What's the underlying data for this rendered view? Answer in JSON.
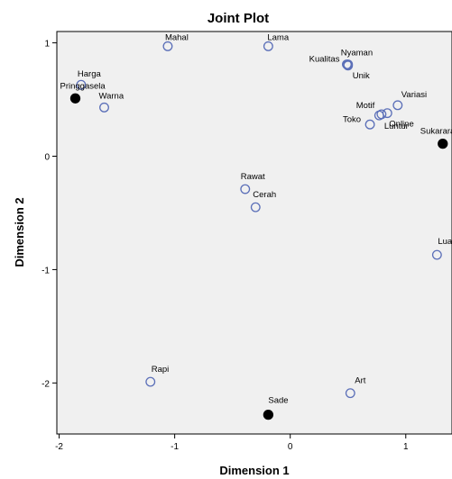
{
  "chart_data": {
    "type": "scatter",
    "title": "Joint Plot",
    "xlabel": "Dimension 1",
    "ylabel": "Dimension 2",
    "xlim": [
      -2.02,
      1.4
    ],
    "ylim": [
      -2.45,
      1.1
    ],
    "xticks": [
      -2,
      -1,
      0,
      1
    ],
    "yticks": [
      1,
      0,
      -1,
      -2
    ],
    "xtick_labels": [
      "-2",
      "-1",
      "0",
      "1"
    ],
    "ytick_labels": [
      "1",
      "0",
      "-1",
      "-2"
    ],
    "grid": false,
    "plot_background": "#f0f0f0",
    "series": [
      {
        "marker": "open-circle",
        "color": "#5b6fb8",
        "points": [
          {
            "label": "Mahal",
            "x": -1.06,
            "y": 0.97
          },
          {
            "label": "Lama",
            "x": -0.19,
            "y": 0.97
          },
          {
            "label": "Kualitas",
            "x": 0.49,
            "y": 0.81
          },
          {
            "label": "Nyaman",
            "x": 0.5,
            "y": 0.81
          },
          {
            "label": "Unik",
            "x": 0.5,
            "y": 0.8
          },
          {
            "label": "Harga",
            "x": -1.81,
            "y": 0.63
          },
          {
            "label": "Warna",
            "x": -1.61,
            "y": 0.43
          },
          {
            "label": "Variasi",
            "x": 0.93,
            "y": 0.45
          },
          {
            "label": "Motif",
            "x": 0.77,
            "y": 0.36
          },
          {
            "label": "Online",
            "x": 0.84,
            "y": 0.38
          },
          {
            "label": "Toko",
            "x": 0.69,
            "y": 0.28
          },
          {
            "label": "Luntur",
            "x": 0.79,
            "y": 0.37
          },
          {
            "label": "Rawat",
            "x": -0.39,
            "y": -0.29
          },
          {
            "label": "Cerah",
            "x": -0.3,
            "y": -0.45
          },
          {
            "label": "Luas",
            "x": 1.27,
            "y": -0.87
          },
          {
            "label": "Rapi",
            "x": -1.21,
            "y": -1.99
          },
          {
            "label": "Art",
            "x": 0.52,
            "y": -2.09
          }
        ]
      },
      {
        "marker": "filled-circle",
        "color": "#000000",
        "points": [
          {
            "label": "Pringgasela",
            "x": -1.86,
            "y": 0.51
          },
          {
            "label": "Sukarara",
            "x": 1.32,
            "y": 0.11
          },
          {
            "label": "Sade",
            "x": -0.19,
            "y": -2.28
          }
        ]
      }
    ]
  }
}
